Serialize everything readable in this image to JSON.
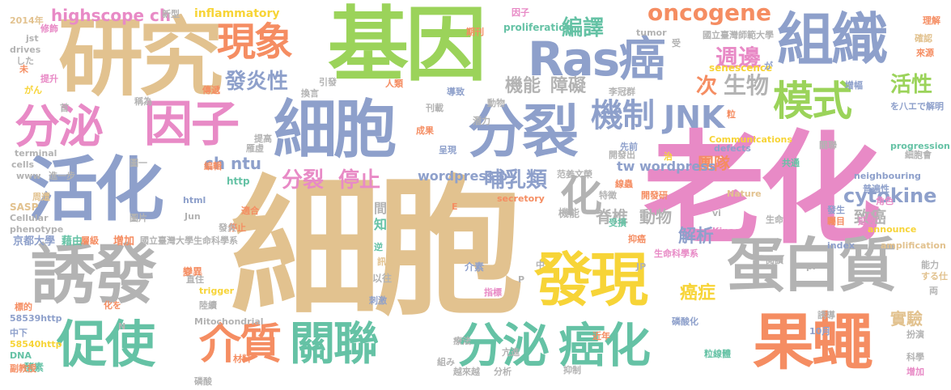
{
  "palette": {
    "tan": "#e2c28f",
    "pink": "#e88ac6",
    "blue": "#8ea0cb",
    "green": "#9bd35a",
    "orange": "#f58d62",
    "yellow": "#f7d437",
    "teal": "#65c2a5",
    "gray": "#b3b3b3"
  },
  "words": [
    {
      "text": "細胞",
      "color": "#e2c28f"
    },
    {
      "text": "老化",
      "color": "#e88ac6"
    },
    {
      "text": "基因",
      "color": "#9bd35a"
    },
    {
      "text": "研究",
      "color": "#e2c28f"
    },
    {
      "text": "活化",
      "color": "#8ea0cb"
    },
    {
      "text": "誘發",
      "color": "#b3b3b3"
    },
    {
      "text": "細胞",
      "color": "#8ea0cb"
    },
    {
      "text": "分裂",
      "color": "#8ea0cb"
    },
    {
      "text": "Ras癌",
      "color": "#8ea0cb"
    },
    {
      "text": "組織",
      "color": "#8ea0cb"
    },
    {
      "text": "蛋白質",
      "color": "#b3b3b3"
    },
    {
      "text": "發現",
      "color": "#f7d437"
    },
    {
      "text": "果蠅",
      "color": "#f58d62"
    },
    {
      "text": "分泌",
      "color": "#e88ac6"
    },
    {
      "text": "因子",
      "color": "#e88ac6"
    },
    {
      "text": "促使",
      "color": "#65c2a5"
    },
    {
      "text": "關聯",
      "color": "#65c2a5"
    },
    {
      "text": "分泌",
      "color": "#65c2a5"
    },
    {
      "text": "癌化",
      "color": "#65c2a5"
    },
    {
      "text": "介質",
      "color": "#f58d62"
    },
    {
      "text": "現象",
      "color": "#f58d62"
    },
    {
      "text": "機制",
      "color": "#8ea0cb"
    },
    {
      "text": "JNK",
      "color": "#8ea0cb"
    },
    {
      "text": "模式",
      "color": "#9bd35a"
    },
    {
      "text": "oncogene",
      "color": "#f58d62"
    },
    {
      "text": "化",
      "color": "#b3b3b3"
    },
    {
      "text": "highscope ch",
      "color": "#e88ac6"
    },
    {
      "text": "發炎性",
      "color": "#8ea0cb"
    },
    {
      "text": "編譯",
      "color": "#65c2a5"
    },
    {
      "text": "週邊",
      "color": "#e88ac6"
    },
    {
      "text": "次",
      "color": "#f58d62"
    },
    {
      "text": "生物",
      "color": "#b3b3b3"
    },
    {
      "text": "活性",
      "color": "#9bd35a"
    },
    {
      "text": "機能",
      "color": "#b3b3b3"
    },
    {
      "text": "障礙",
      "color": "#b3b3b3"
    },
    {
      "text": "分裂",
      "color": "#e88ac6"
    },
    {
      "text": "停止",
      "color": "#e88ac6"
    },
    {
      "text": "ch",
      "color": "#8ea0cb"
    },
    {
      "text": "ntu",
      "color": "#8ea0cb"
    },
    {
      "text": "哺乳類",
      "color": "#8ea0cb"
    },
    {
      "text": "團隊",
      "color": "#f58d62"
    },
    {
      "text": "cytokine",
      "color": "#8ea0cb"
    },
    {
      "text": "tw wordpress",
      "color": "#8ea0cb"
    },
    {
      "text": "wordpress p",
      "color": "#8ea0cb"
    },
    {
      "text": "致癌",
      "color": "#b3b3b3"
    },
    {
      "text": "脊椎",
      "color": "#b3b3b3"
    },
    {
      "text": "動物",
      "color": "#b3b3b3"
    },
    {
      "text": "解析",
      "color": "#8ea0cb"
    },
    {
      "text": "癌症",
      "color": "#f7d437"
    },
    {
      "text": "實驗",
      "color": "#e2c28f"
    },
    {
      "text": "inflammatory",
      "color": "#f7d437"
    },
    {
      "text": "京都大學",
      "color": "#8ea0cb"
    },
    {
      "text": "藉由",
      "color": "#65c2a5"
    },
    {
      "text": "增加",
      "color": "#f58d62"
    },
    {
      "text": "國立臺灣大學生命科學系",
      "color": "#b3b3b3"
    },
    {
      "text": "國立臺灣師範大學",
      "color": "#b3b3b3"
    },
    {
      "text": "proliferation",
      "color": "#65c2a5"
    },
    {
      "text": "tumor",
      "color": "#b3b3b3"
    },
    {
      "text": "senescence",
      "color": "#f7d437"
    },
    {
      "text": "Communications",
      "color": "#f7d437"
    },
    {
      "text": "defects",
      "color": "#8ea0cb"
    },
    {
      "text": "progression",
      "color": "#65c2a5"
    },
    {
      "text": "neighbouring",
      "color": "#8ea0cb"
    },
    {
      "text": "amplification",
      "color": "#e2c28f"
    },
    {
      "text": "Mitochondrial",
      "color": "#b3b3b3"
    },
    {
      "text": "Kinase",
      "color": "#e88ac6"
    },
    {
      "text": "Nature",
      "color": "#e2c28f"
    },
    {
      "text": "announce",
      "color": "#f7d437"
    },
    {
      "text": "index",
      "color": "#8ea0cb"
    },
    {
      "text": "secretory",
      "color": "#f58d62"
    },
    {
      "text": "trigger",
      "color": "#f7d437"
    },
    {
      "text": "58539http",
      "color": "#8ea0cb"
    },
    {
      "text": "58540http",
      "color": "#f7d437"
    },
    {
      "text": "SASP",
      "color": "#e2c28f"
    },
    {
      "text": "phenotype",
      "color": "#b3b3b3"
    },
    {
      "text": "Cellular",
      "color": "#b3b3b3"
    },
    {
      "text": "DNA",
      "color": "#65c2a5"
    },
    {
      "text": "酵素",
      "color": "#65c2a5"
    },
    {
      "text": "http",
      "color": "#65c2a5"
    },
    {
      "text": "html",
      "color": "#8ea0cb"
    },
    {
      "text": "Jun",
      "color": "#b3b3b3"
    },
    {
      "text": "2014年",
      "color": "#e2c28f"
    },
    {
      "text": "jst",
      "color": "#b3b3b3"
    },
    {
      "text": "drives",
      "color": "#b3b3b3"
    },
    {
      "text": "した",
      "color": "#b3b3b3"
    },
    {
      "text": "www",
      "color": "#b3b3b3"
    },
    {
      "text": "cells",
      "color": "#b3b3b3"
    },
    {
      "text": "terminal",
      "color": "#b3b3b3"
    },
    {
      "text": "介素",
      "color": "#8ea0cb"
    },
    {
      "text": "變異",
      "color": "#f58d62"
    },
    {
      "text": "生命科學系",
      "color": "#e88ac6"
    },
    {
      "text": "磷酸化",
      "color": "#8ea0cb"
    },
    {
      "text": "粒線體",
      "color": "#65c2a5"
    },
    {
      "text": "角色",
      "color": "#e88ac6"
    },
    {
      "text": "理解",
      "color": "#f58d62"
    },
    {
      "text": "確認",
      "color": "#e2c28f"
    },
    {
      "text": "來源",
      "color": "#f58d62"
    },
    {
      "text": "新型",
      "color": "#b3b3b3"
    },
    {
      "text": "因子",
      "color": "#e88ac6"
    },
    {
      "text": "期刊",
      "color": "#f58d62"
    },
    {
      "text": "傳遞",
      "color": "#f58d62"
    },
    {
      "text": "導致",
      "color": "#8ea0cb"
    },
    {
      "text": "提升",
      "color": "#e88ac6"
    },
    {
      "text": "がん",
      "color": "#f7d437"
    },
    {
      "text": "受",
      "color": "#b3b3b3"
    },
    {
      "text": "が",
      "color": "#8ea0cb"
    },
    {
      "text": "增幅",
      "color": "#8ea0cb"
    },
    {
      "text": "を八エで解明",
      "color": "#8ea0cb"
    },
    {
      "text": "細胞會",
      "color": "#b3b3b3"
    },
    {
      "text": "共通",
      "color": "#65c2a5"
    },
    {
      "text": "普遍性",
      "color": "#8ea0cb"
    },
    {
      "text": "延伸",
      "color": "#e88ac6"
    },
    {
      "text": "生命",
      "color": "#b3b3b3"
    },
    {
      "text": "發生",
      "color": "#8ea0cb"
    },
    {
      "text": "矚目",
      "color": "#f58d62"
    },
    {
      "text": "閱讀",
      "color": "#b3b3b3"
    },
    {
      "text": "能力",
      "color": "#b3b3b3"
    },
    {
      "text": "する仕",
      "color": "#e2c28f"
    },
    {
      "text": "扮演",
      "color": "#b3b3b3"
    },
    {
      "text": "科學",
      "color": "#b3b3b3"
    },
    {
      "text": "增加",
      "color": "#e88ac6"
    },
    {
      "text": "10月",
      "color": "#8ea0cb"
    },
    {
      "text": "誘導",
      "color": "#b3b3b3"
    },
    {
      "text": "材料",
      "color": "#f58d62"
    },
    {
      "text": "亢進",
      "color": "#b3b3b3"
    },
    {
      "text": "抑制",
      "color": "#b3b3b3"
    },
    {
      "text": "近年",
      "color": "#f58d62"
    },
    {
      "text": "越來越",
      "color": "#b3b3b3"
    },
    {
      "text": "組み",
      "color": "#b3b3b3"
    },
    {
      "text": "療法",
      "color": "#b3b3b3"
    },
    {
      "text": "副教授",
      "color": "#f58d62"
    },
    {
      "text": "中下",
      "color": "#8ea0cb"
    },
    {
      "text": "標的",
      "color": "#f58d62"
    },
    {
      "text": "陸續",
      "color": "#b3b3b3"
    },
    {
      "text": "化を",
      "color": "#f58d62"
    },
    {
      "text": "直住",
      "color": "#b3b3b3"
    },
    {
      "text": "層級",
      "color": "#f58d62"
    },
    {
      "text": "停止",
      "color": "#f58d62"
    },
    {
      "text": "發炎",
      "color": "#b3b3b3"
    },
    {
      "text": "圖片",
      "color": "#b3b3b3"
    },
    {
      "text": "圖一",
      "color": "#b3b3b3"
    },
    {
      "text": "周遭",
      "color": "#e2c28f"
    },
    {
      "text": "編輯",
      "color": "#f58d62"
    },
    {
      "text": "雁虛",
      "color": "#b3b3b3"
    },
    {
      "text": "提高",
      "color": "#b3b3b3"
    },
    {
      "text": "成果",
      "color": "#f58d62"
    },
    {
      "text": "呈現",
      "color": "#8ea0cb"
    },
    {
      "text": "刊載",
      "color": "#b3b3b3"
    },
    {
      "text": "換言",
      "color": "#b3b3b3"
    },
    {
      "text": "引發",
      "color": "#b3b3b3"
    },
    {
      "text": "人類",
      "color": "#f58d62"
    },
    {
      "text": "稱為",
      "color": "#b3b3b3"
    },
    {
      "text": "修飾",
      "color": "#e88ac6"
    },
    {
      "text": "潛力",
      "color": "#b3b3b3"
    },
    {
      "text": "動物",
      "color": "#b3b3b3"
    },
    {
      "text": "李冠群",
      "color": "#b3b3b3"
    },
    {
      "text": "先前",
      "color": "#8ea0cb"
    },
    {
      "text": "開發出",
      "color": "#b3b3b3"
    },
    {
      "text": "范姜文榮",
      "color": "#b3b3b3"
    },
    {
      "text": "線蟲",
      "color": "#f58d62"
    },
    {
      "text": "特徵",
      "color": "#b3b3b3"
    },
    {
      "text": "開發研",
      "color": "#f58d62"
    },
    {
      "text": "受損",
      "color": "#65c2a5"
    },
    {
      "text": "抑癌",
      "color": "#f58d62"
    },
    {
      "text": "分析",
      "color": "#b3b3b3"
    },
    {
      "text": "指標",
      "color": "#e88ac6"
    },
    {
      "text": "刺激",
      "color": "#8ea0cb"
    },
    {
      "text": "以往",
      "color": "#b3b3b3"
    },
    {
      "text": "訊息",
      "color": "#e2c28f"
    },
    {
      "text": "逆",
      "color": "#65c2a5"
    },
    {
      "text": "知",
      "color": "#65c2a5"
    },
    {
      "text": "間",
      "color": "#b3b3b3"
    },
    {
      "text": "機能",
      "color": "#b3b3b3"
    },
    {
      "text": "中",
      "color": "#b3b3b3"
    },
    {
      "text": "pr",
      "color": "#b3b3b3"
    },
    {
      "text": "JP",
      "color": "#b3b3b3"
    },
    {
      "text": "E",
      "color": "#f58d62"
    },
    {
      "text": "N",
      "color": "#b3b3b3"
    },
    {
      "text": "P",
      "color": "#b3b3b3"
    },
    {
      "text": "首",
      "color": "#b3b3b3"
    },
    {
      "text": "未",
      "color": "#f58d62"
    },
    {
      "text": "進一步",
      "color": "#b3b3b3"
    },
    {
      "text": "適合",
      "color": "#f58d62"
    },
    {
      "text": "磷酸",
      "color": "#b3b3b3"
    },
    {
      "text": "關聯",
      "color": "#b3b3b3"
    },
    {
      "text": "治",
      "color": "#f7d437"
    },
    {
      "text": "vi",
      "color": "#b3b3b3"
    },
    {
      "text": "粒",
      "color": "#f58d62"
    },
    {
      "text": "両",
      "color": "#b3b3b3"
    }
  ]
}
